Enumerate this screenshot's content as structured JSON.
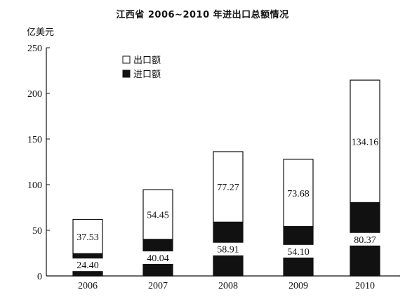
{
  "chart_data": {
    "type": "bar",
    "stacked": true,
    "title": "江西省 2006~2010 年进出口总额情况",
    "ylabel": "亿美元",
    "xlabel": "",
    "categories": [
      "2006",
      "2007",
      "2008",
      "2009",
      "2010"
    ],
    "series": [
      {
        "name": "进口额",
        "values": [
          24.4,
          40.04,
          58.91,
          54.1,
          80.37
        ],
        "color": "#111111"
      },
      {
        "name": "出口额",
        "values": [
          37.53,
          54.45,
          77.27,
          73.68,
          134.16
        ],
        "color": "#ffffff"
      }
    ],
    "data_labels": {
      "imports": [
        "24.40",
        "40.04",
        "58.91",
        "54.10",
        "80.37"
      ],
      "exports": [
        "37.53",
        "54.45",
        "77.27",
        "73.68",
        "134.16"
      ]
    },
    "ylim": [
      0,
      250
    ],
    "yticks": [
      "0",
      "50",
      "100",
      "150",
      "200",
      "250"
    ],
    "legend": {
      "position": "top-left",
      "entries": [
        {
          "label": "出口额",
          "swatch": "white"
        },
        {
          "label": "进口额",
          "swatch": "black"
        }
      ]
    },
    "grid": false
  }
}
